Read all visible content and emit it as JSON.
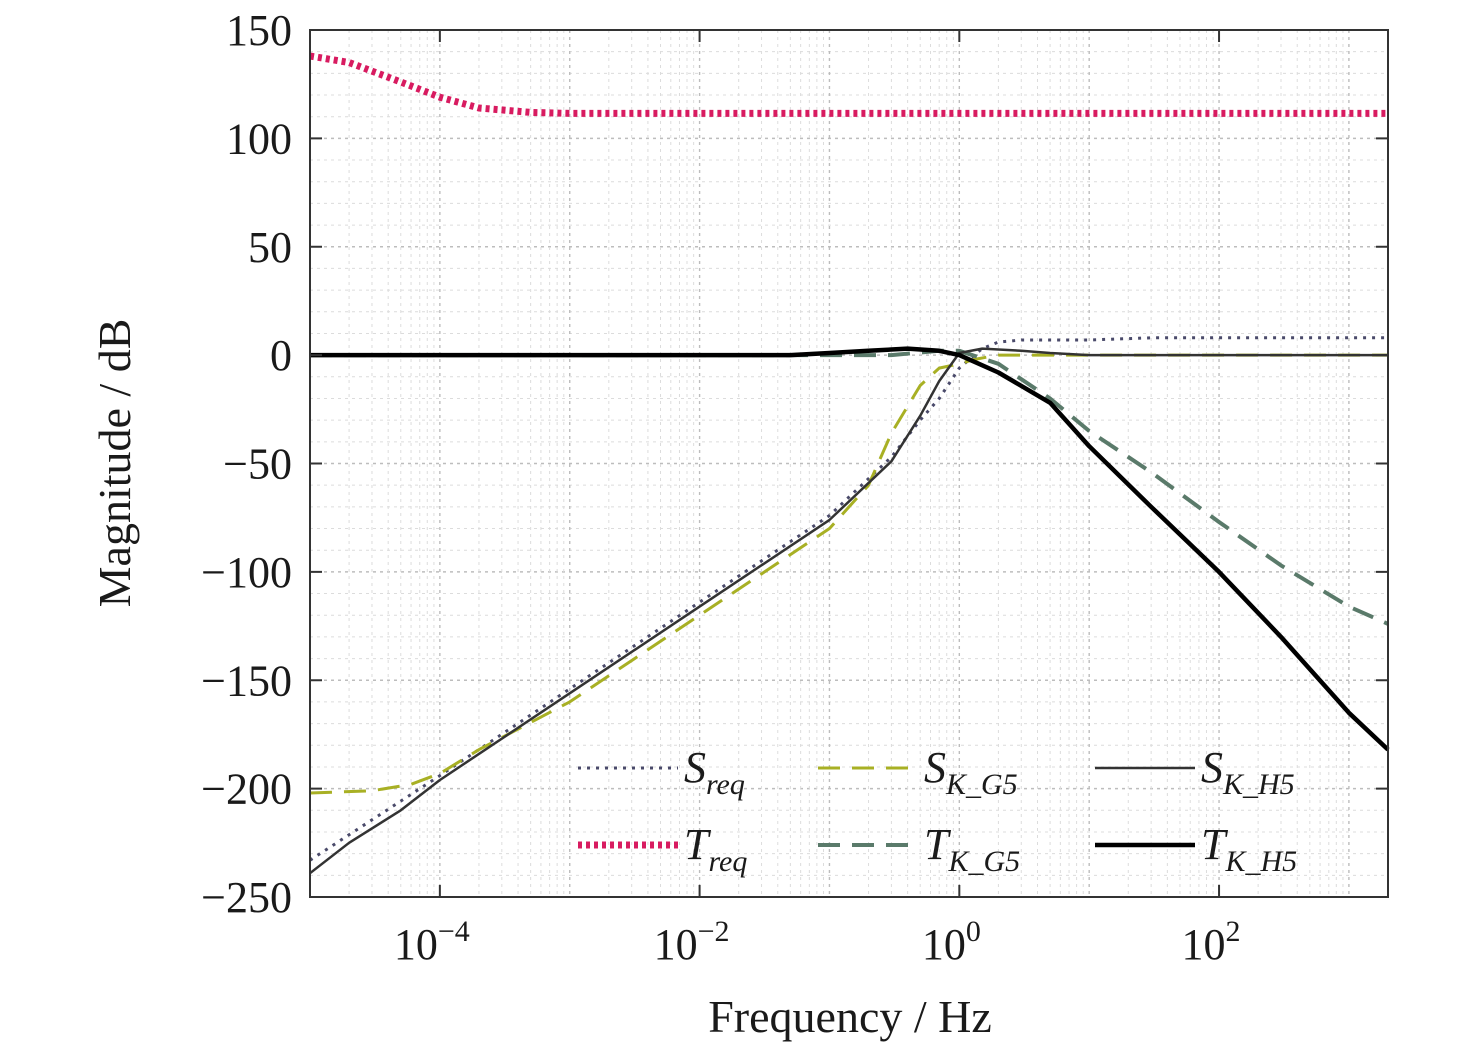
{
  "chart_data": {
    "type": "line",
    "xlabel": "Frequency / Hz",
    "ylabel": "Magnitude / dB",
    "xscale": "log",
    "xlim": [
      1e-05,
      2000
    ],
    "ylim": [
      -250,
      150
    ],
    "grid": true,
    "legend_position": "bottom-right",
    "y_ticks": [
      150,
      100,
      50,
      0,
      -50,
      -100,
      -150,
      -200,
      -250
    ],
    "y_tick_labels": [
      "150",
      "100",
      "50",
      "0",
      "−50",
      "−100",
      "−150",
      "−200",
      "−250"
    ],
    "x_ticks": [
      {
        "value": 0.0001,
        "base": "10",
        "exp": "−4"
      },
      {
        "value": 0.01,
        "base": "10",
        "exp": "−2"
      },
      {
        "value": 1,
        "base": "10",
        "exp": "0"
      },
      {
        "value": 100,
        "base": "10",
        "exp": "2"
      }
    ],
    "series": [
      {
        "id": "S_req",
        "legend": {
          "main": "S",
          "sub": "req",
          "sub_italic": ""
        },
        "color": "#4a4a6a",
        "dash": "3,6",
        "width": 3,
        "points": [
          [
            1e-05,
            -233
          ],
          [
            0.0001,
            -194
          ],
          [
            0.001,
            -154
          ],
          [
            0.01,
            -114
          ],
          [
            0.1,
            -74
          ],
          [
            0.3,
            -47
          ],
          [
            0.5,
            -30
          ],
          [
            0.7,
            -20
          ],
          [
            1,
            -6
          ],
          [
            1.5,
            3
          ],
          [
            2,
            6
          ],
          [
            3,
            7
          ],
          [
            5,
            7
          ],
          [
            10,
            7
          ],
          [
            30,
            8
          ],
          [
            100,
            8
          ],
          [
            300,
            8
          ],
          [
            1000,
            8
          ],
          [
            2000,
            8
          ]
        ]
      },
      {
        "id": "T_req",
        "legend": {
          "main": "T",
          "sub": "req",
          "sub_italic": ""
        },
        "color": "#d81b60",
        "dash": "4,4",
        "width": 7,
        "points": [
          [
            1e-05,
            138
          ],
          [
            2e-05,
            135
          ],
          [
            5e-05,
            126
          ],
          [
            0.0001,
            119
          ],
          [
            0.0002,
            114
          ],
          [
            0.0005,
            112
          ],
          [
            0.001,
            111.5
          ],
          [
            0.01,
            111.5
          ],
          [
            1,
            111.5
          ],
          [
            100,
            111.5
          ],
          [
            2000,
            111.5
          ]
        ]
      },
      {
        "id": "S_K_G5",
        "legend": {
          "main": "S",
          "sub": "_G5",
          "sub_italic": "K"
        },
        "color": "#a8b024",
        "dash": "22,12",
        "width": 3,
        "points": [
          [
            1e-05,
            -202
          ],
          [
            3e-05,
            -201
          ],
          [
            6e-05,
            -198
          ],
          [
            0.0001,
            -193
          ],
          [
            0.0002,
            -182
          ],
          [
            0.001,
            -160
          ],
          [
            0.01,
            -120
          ],
          [
            0.1,
            -80
          ],
          [
            0.2,
            -60
          ],
          [
            0.3,
            -36
          ],
          [
            0.5,
            -14
          ],
          [
            0.7,
            -6
          ],
          [
            1,
            -4
          ],
          [
            1.3,
            -2
          ],
          [
            1.6,
            -1
          ],
          [
            2,
            0
          ],
          [
            3,
            0
          ],
          [
            10,
            0
          ],
          [
            2000,
            0
          ]
        ]
      },
      {
        "id": "T_K_G5",
        "legend": {
          "main": "T",
          "sub": "_G5",
          "sub_italic": "K"
        },
        "color": "#5a7a6a",
        "dash": "22,12",
        "width": 4,
        "points": [
          [
            1e-05,
            0
          ],
          [
            0.001,
            0
          ],
          [
            0.1,
            0
          ],
          [
            0.3,
            0
          ],
          [
            0.7,
            2
          ],
          [
            1,
            2
          ],
          [
            2,
            -4
          ],
          [
            5,
            -20
          ],
          [
            10,
            -35
          ],
          [
            30,
            -54
          ],
          [
            100,
            -77
          ],
          [
            300,
            -97
          ],
          [
            1000,
            -116
          ],
          [
            2000,
            -124
          ]
        ]
      },
      {
        "id": "S_K_H5",
        "legend": {
          "main": "S",
          "sub": "_H5",
          "sub_italic": "K"
        },
        "color": "#333333",
        "dash": "",
        "width": 2.5,
        "points": [
          [
            1e-05,
            -239
          ],
          [
            2e-05,
            -225
          ],
          [
            5e-05,
            -210
          ],
          [
            0.0001,
            -196
          ],
          [
            0.001,
            -156
          ],
          [
            0.01,
            -116
          ],
          [
            0.1,
            -76
          ],
          [
            0.3,
            -49
          ],
          [
            0.5,
            -28
          ],
          [
            0.7,
            -12
          ],
          [
            1,
            1
          ],
          [
            1.5,
            3
          ],
          [
            3,
            2
          ],
          [
            5,
            1
          ],
          [
            10,
            0
          ],
          [
            2000,
            0
          ]
        ]
      },
      {
        "id": "T_K_H5",
        "legend": {
          "main": "T",
          "sub": "_H5",
          "sub_italic": "K"
        },
        "color": "#000000",
        "dash": "",
        "width": 4.5,
        "points": [
          [
            1e-05,
            0
          ],
          [
            0.001,
            0
          ],
          [
            0.05,
            0
          ],
          [
            0.1,
            1
          ],
          [
            0.2,
            2
          ],
          [
            0.4,
            3
          ],
          [
            0.7,
            2
          ],
          [
            1,
            0
          ],
          [
            2,
            -8
          ],
          [
            5,
            -22
          ],
          [
            10,
            -42
          ],
          [
            30,
            -70
          ],
          [
            100,
            -100
          ],
          [
            300,
            -130
          ],
          [
            1000,
            -165
          ],
          [
            2000,
            -182
          ]
        ]
      }
    ]
  }
}
